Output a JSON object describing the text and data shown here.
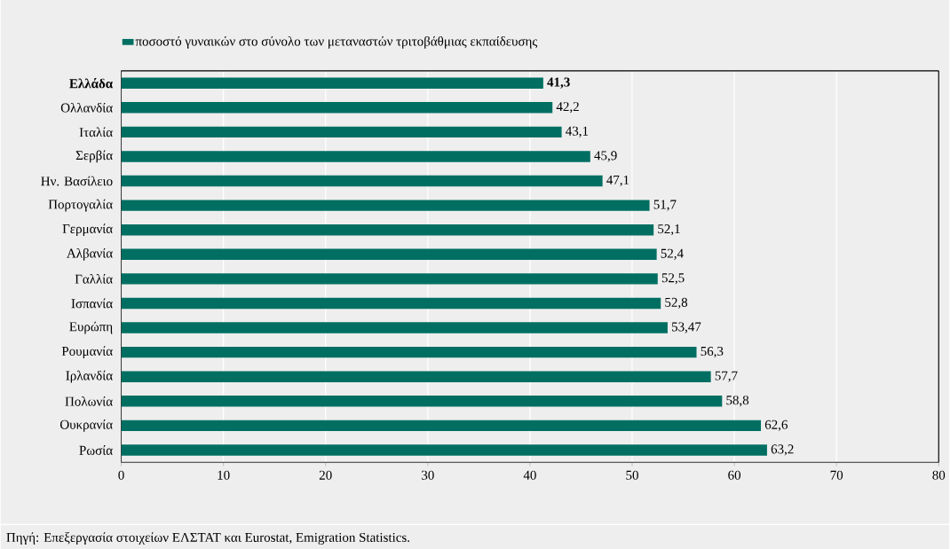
{
  "chart_data": {
    "type": "bar",
    "orientation": "horizontal",
    "categories": [
      "**Ελλάδα**",
      "Ολλανδία",
      "Ιταλία",
      "Σερβία",
      "Ην. Βασίλειο",
      "Πορτογαλία",
      "Γερμανία",
      "Αλβανία",
      "Γαλλία",
      "Ισπανία",
      "Ευρώπη",
      "Ρουμανία",
      "Ιρλανδία",
      "Πολωνία",
      "Ουκρανία",
      "Ρωσία"
    ],
    "series": [
      {
        "name": "ποσοστό γυναικών στο σύνολο των μεταναστών τριτοβάθμιας εκπαίδευσης",
        "color": "#006f62",
        "values": [
          41.3,
          42.2,
          43.1,
          45.9,
          47.1,
          51.7,
          52.1,
          52.4,
          52.5,
          52.8,
          53.47,
          56.3,
          57.7,
          58.8,
          62.6,
          63.2
        ],
        "value_labels": [
          "**41,3**",
          "42,2",
          "43,1",
          "45,9",
          "47,1",
          "51,7",
          "52,1",
          "52,4",
          "52,5",
          "52,8",
          "53,47",
          "56,3",
          "57,7",
          "58,8",
          "62,6",
          "63,2"
        ]
      }
    ],
    "xlim": [
      0,
      80
    ],
    "xticks": [
      0,
      10,
      20,
      30,
      40,
      50,
      60,
      70,
      80
    ],
    "grid": "x",
    "legend": "top left",
    "annotations": [
      "Πηγή: Επεξεργασία στοιχείων ΕΛΣΤΑΤ και Eurostat, Emigration Statistics."
    ]
  }
}
